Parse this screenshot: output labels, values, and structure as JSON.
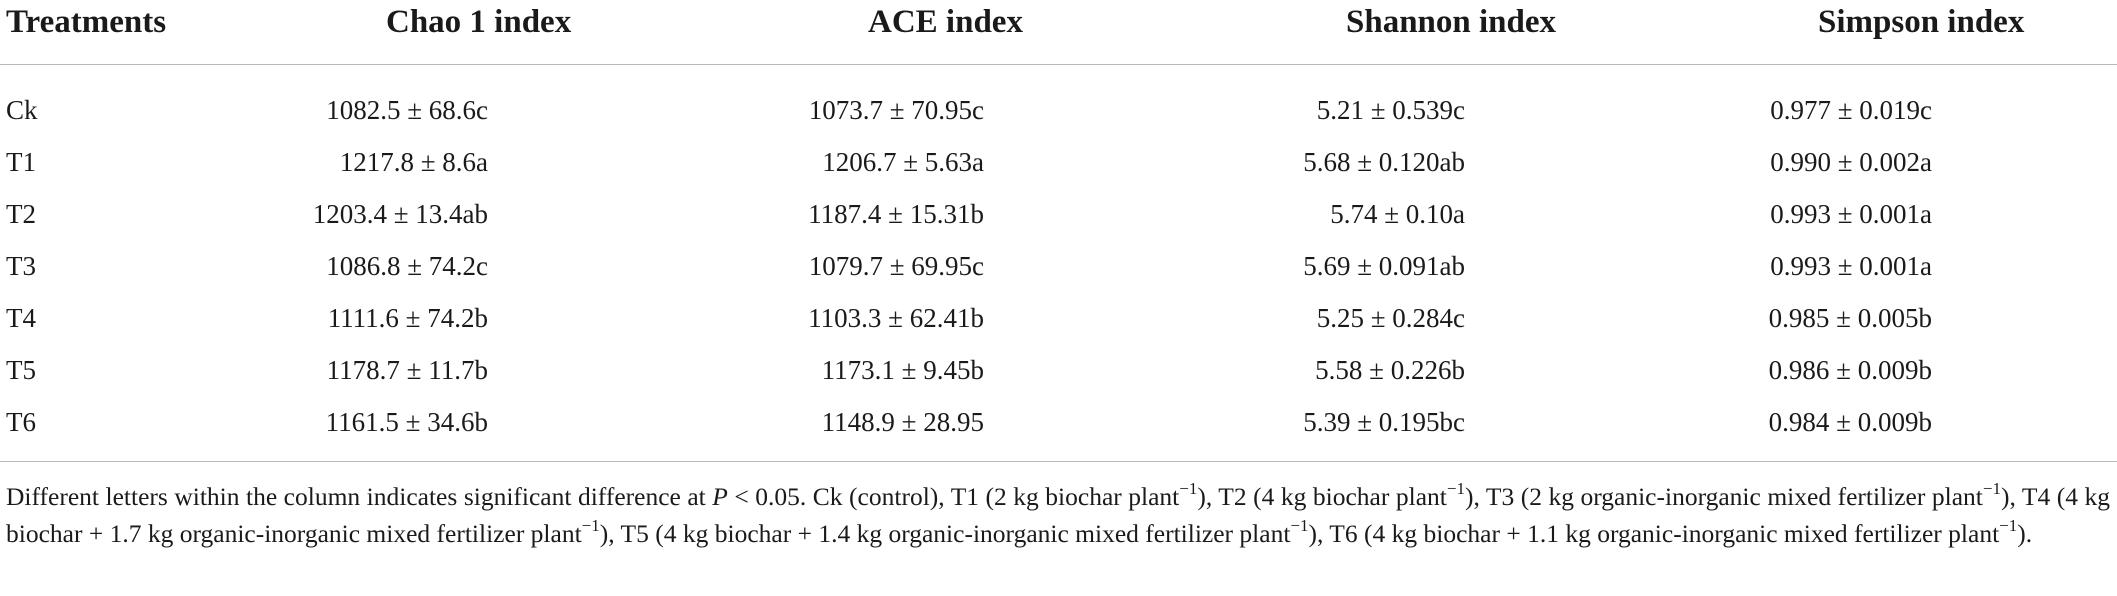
{
  "table": {
    "headers": [
      "Treatments",
      "Chao 1 index",
      "ACE index",
      "Shannon index",
      "Simpson index"
    ],
    "rows": [
      [
        "Ck",
        "1082.5 ± 68.6c",
        "1073.7 ± 70.95c",
        "5.21 ± 0.539c",
        "0.977 ± 0.019c"
      ],
      [
        "T1",
        "1217.8 ± 8.6a",
        "1206.7 ± 5.63a",
        "5.68 ± 0.120ab",
        "0.990 ± 0.002a"
      ],
      [
        "T2",
        "1203.4 ± 13.4ab",
        "1187.4 ± 15.31b",
        "5.74 ± 0.10a",
        "0.993 ± 0.001a"
      ],
      [
        "T3",
        "1086.8 ± 74.2c",
        "1079.7 ± 69.95c",
        "5.69 ± 0.091ab",
        "0.993 ± 0.001a"
      ],
      [
        "T4",
        "1111.6 ± 74.2b",
        "1103.3 ± 62.41b",
        "5.25 ± 0.284c",
        "0.985 ± 0.005b"
      ],
      [
        "T5",
        "1178.7 ± 11.7b",
        "1173.1 ± 9.45b",
        "5.58 ± 0.226b",
        "0.986 ± 0.009b"
      ],
      [
        "T6",
        "1161.5 ± 34.6b",
        "1148.9 ± 28.95",
        "5.39 ± 0.195bc",
        "0.984 ± 0.009b"
      ]
    ]
  },
  "footnote": {
    "p1": "Different letters within the column indicates significant difference at ",
    "p_symbol": "P",
    "p2": " < 0.05. Ck (control), T1 (2 kg biochar plant",
    "sup": "−1",
    "p3": "), T2 (4 kg biochar plant",
    "p4": "), T3 (2 kg organic-inorganic mixed fertilizer plant",
    "p5": "), T4 (4 kg biochar + 1.7 kg organic-inorganic mixed fertilizer plant",
    "p6": "), T5 (4 kg biochar + 1.4 kg organic-inorganic mixed fertilizer plant",
    "p7": "), T6 (4 kg biochar + 1.1 kg organic-inorganic mixed fertilizer plant",
    "p8": ")."
  }
}
